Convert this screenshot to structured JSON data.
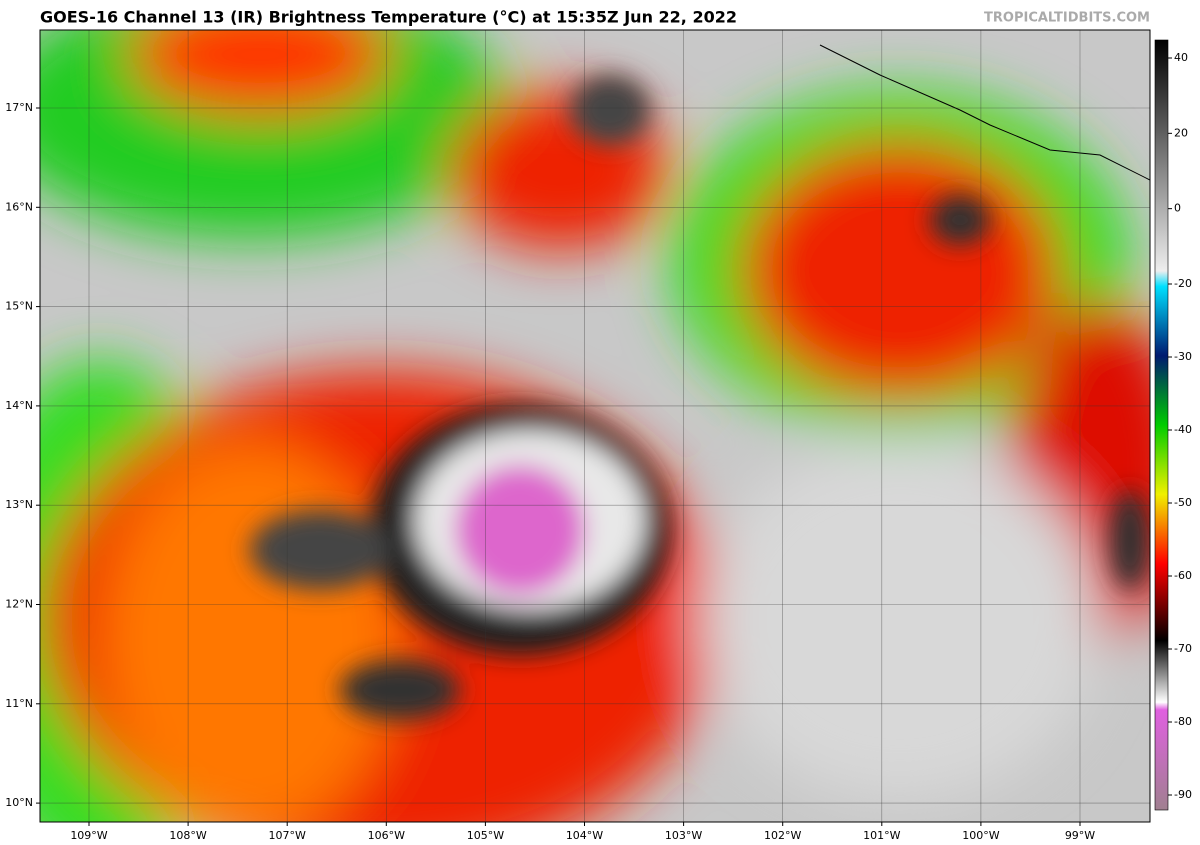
{
  "header": {
    "title": "GOES-16 Channel 13 (IR) Brightness Temperature (°C) at 15:35Z Jun 22, 2022",
    "watermark": "TROPICALTIDBITS.COM"
  },
  "lat_labels": [
    "17°N",
    "16°N",
    "15°N",
    "14°N",
    "13°N",
    "12°N",
    "11°N",
    "10°N"
  ],
  "lon_labels": [
    "109°W",
    "108°W",
    "107°W",
    "106°W",
    "105°W",
    "104°W",
    "103°W",
    "102°W",
    "101°W",
    "100°W",
    "99°W"
  ],
  "colorbar": {
    "ticks": [
      40,
      20,
      0,
      -20,
      -30,
      -40,
      -50,
      -60,
      -70,
      -80,
      -90
    ]
  }
}
